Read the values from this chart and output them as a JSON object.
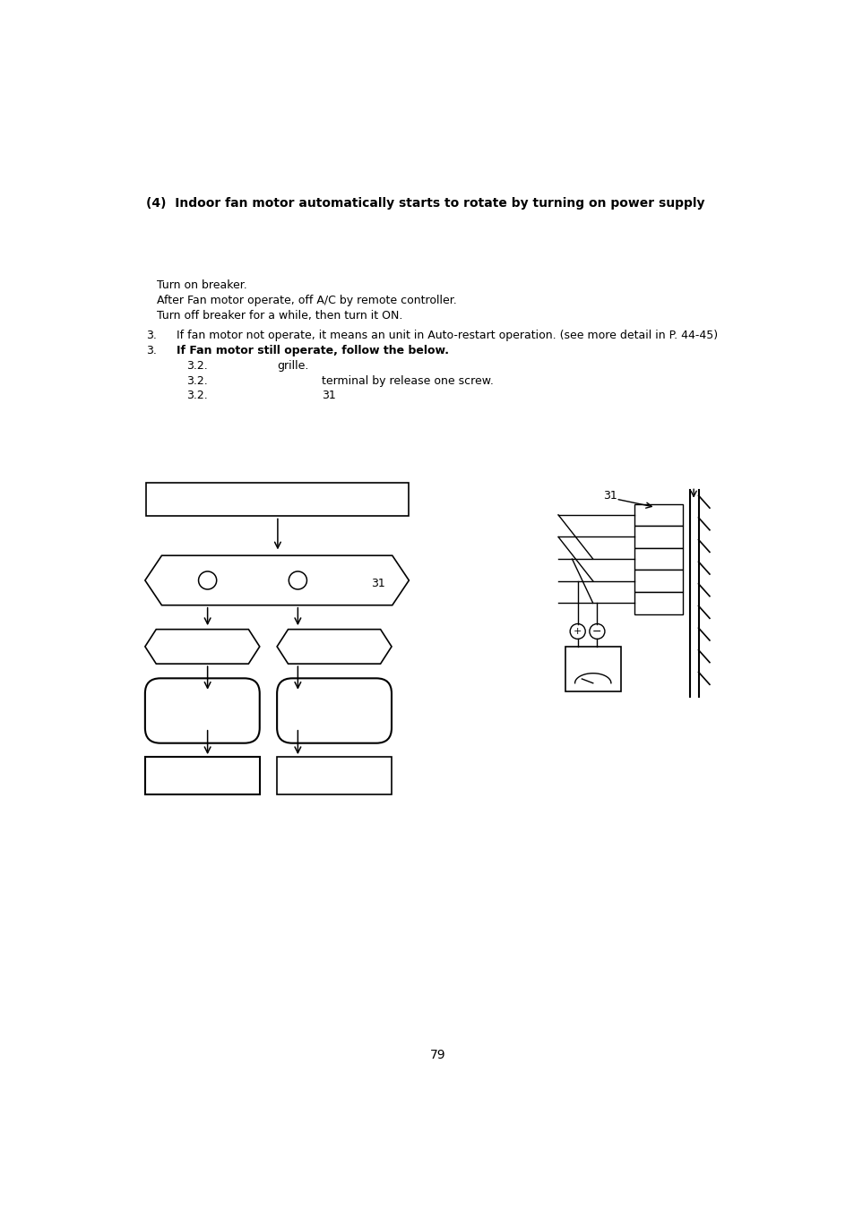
{
  "title": "(4)  Indoor fan motor automatically starts to rotate by turning on power supply",
  "line1": "Turn on breaker.",
  "line2": "After Fan motor operate, off A/C by remote controller.",
  "line3": "Turn off breaker for a while, then turn it ON.",
  "num1": "3.",
  "text1": "If fan motor not operate, it means an unit in Auto-restart operation. (see more detail in P. 44-45)",
  "num2": "3.",
  "text2": "If Fan motor still operate, follow the below.",
  "sub1_num": "3.2.",
  "sub1_text": "grille.",
  "sub2_num": "3.2.",
  "sub2_text": "terminal by release one screw.",
  "sub3_num": "3.2.",
  "sub3_text": "31",
  "label_31": "31",
  "page_number": "79",
  "bg": "#ffffff",
  "fg": "#000000"
}
